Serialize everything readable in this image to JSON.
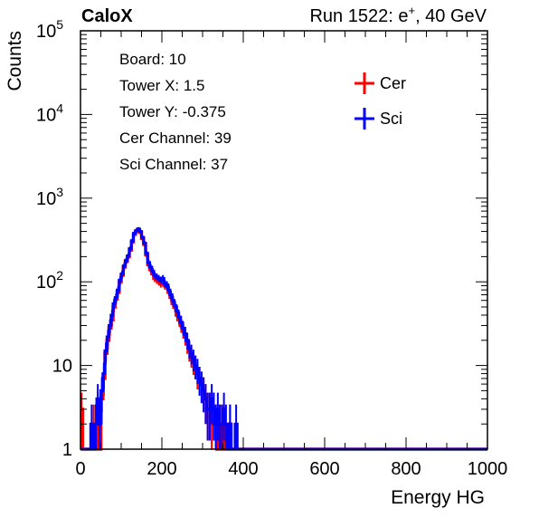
{
  "header": {
    "experiment": "CaloX",
    "run_label": "Run 1522: e",
    "run_sup": "+",
    "run_suffix": ", 40 GeV"
  },
  "info_box": {
    "lines": [
      "Board: 10",
      "Tower X: 1.5",
      "Tower Y: -0.375",
      "Cer Channel: 39",
      "Sci Channel: 37"
    ]
  },
  "chart_data": {
    "type": "line",
    "xlabel": "Energy HG",
    "ylabel": "Counts",
    "xlim": [
      0,
      1000
    ],
    "ylim": [
      1,
      100000
    ],
    "yscale": "log",
    "grid": false,
    "legend_placement": "top-right",
    "x_ticks": [
      "0",
      "200",
      "400",
      "600",
      "800",
      "1000"
    ],
    "y_ticks": [
      {
        "base": "1",
        "exp": ""
      },
      {
        "base": "10",
        "exp": ""
      },
      {
        "base": "10",
        "exp": "2"
      },
      {
        "base": "10",
        "exp": "3"
      },
      {
        "base": "10",
        "exp": "4"
      },
      {
        "base": "10",
        "exp": "5"
      }
    ],
    "series": [
      {
        "name": "Cer",
        "color": "#ff0000",
        "points": [
          [
            0,
            3
          ],
          [
            5,
            1
          ],
          [
            10,
            1
          ],
          [
            15,
            1
          ],
          [
            20,
            1
          ],
          [
            25,
            1
          ],
          [
            30,
            2
          ],
          [
            35,
            1
          ],
          [
            40,
            3
          ],
          [
            45,
            1
          ],
          [
            50,
            4
          ],
          [
            55,
            7
          ],
          [
            60,
            14
          ],
          [
            65,
            20
          ],
          [
            70,
            28
          ],
          [
            75,
            35
          ],
          [
            80,
            50
          ],
          [
            85,
            62
          ],
          [
            90,
            75
          ],
          [
            95,
            100
          ],
          [
            100,
            120
          ],
          [
            105,
            150
          ],
          [
            110,
            175
          ],
          [
            115,
            200
          ],
          [
            120,
            240
          ],
          [
            125,
            300
          ],
          [
            130,
            370
          ],
          [
            135,
            400
          ],
          [
            140,
            420
          ],
          [
            145,
            390
          ],
          [
            150,
            330
          ],
          [
            155,
            280
          ],
          [
            160,
            210
          ],
          [
            165,
            160
          ],
          [
            170,
            140
          ],
          [
            175,
            125
          ],
          [
            180,
            110
          ],
          [
            185,
            105
          ],
          [
            190,
            100
          ],
          [
            195,
            95
          ],
          [
            200,
            100
          ],
          [
            205,
            90
          ],
          [
            210,
            88
          ],
          [
            215,
            75
          ],
          [
            220,
            65
          ],
          [
            225,
            55
          ],
          [
            230,
            50
          ],
          [
            235,
            40
          ],
          [
            240,
            36
          ],
          [
            245,
            30
          ],
          [
            250,
            26
          ],
          [
            255,
            22
          ],
          [
            260,
            18
          ],
          [
            265,
            15
          ],
          [
            270,
            13
          ],
          [
            275,
            11
          ],
          [
            280,
            10
          ],
          [
            285,
            8
          ],
          [
            290,
            7
          ],
          [
            295,
            6
          ],
          [
            300,
            5
          ],
          [
            305,
            4
          ],
          [
            310,
            3
          ],
          [
            315,
            3
          ],
          [
            320,
            2
          ],
          [
            325,
            3
          ],
          [
            330,
            2
          ],
          [
            335,
            1
          ],
          [
            340,
            2
          ],
          [
            345,
            1
          ],
          [
            350,
            2
          ],
          [
            355,
            1
          ],
          [
            360,
            1
          ],
          [
            365,
            2
          ],
          [
            370,
            1
          ],
          [
            375,
            1
          ],
          [
            380,
            1
          ],
          [
            385,
            1
          ],
          [
            390,
            1
          ],
          [
            395,
            1
          ],
          [
            400,
            1
          ],
          [
            1000,
            1
          ]
        ]
      },
      {
        "name": "Sci",
        "color": "#0000ff",
        "points": [
          [
            0,
            1
          ],
          [
            5,
            1
          ],
          [
            10,
            1
          ],
          [
            15,
            1
          ],
          [
            20,
            1
          ],
          [
            25,
            2
          ],
          [
            30,
            1
          ],
          [
            35,
            2
          ],
          [
            40,
            4
          ],
          [
            45,
            2
          ],
          [
            50,
            5
          ],
          [
            55,
            8
          ],
          [
            60,
            15
          ],
          [
            65,
            22
          ],
          [
            70,
            30
          ],
          [
            75,
            40
          ],
          [
            80,
            55
          ],
          [
            85,
            65
          ],
          [
            90,
            80
          ],
          [
            95,
            105
          ],
          [
            100,
            125
          ],
          [
            105,
            155
          ],
          [
            110,
            180
          ],
          [
            115,
            205
          ],
          [
            120,
            250
          ],
          [
            125,
            310
          ],
          [
            130,
            380
          ],
          [
            135,
            410
          ],
          [
            140,
            430
          ],
          [
            145,
            400
          ],
          [
            150,
            340
          ],
          [
            155,
            290
          ],
          [
            160,
            220
          ],
          [
            165,
            170
          ],
          [
            170,
            150
          ],
          [
            175,
            135
          ],
          [
            180,
            120
          ],
          [
            185,
            115
          ],
          [
            190,
            110
          ],
          [
            195,
            105
          ],
          [
            200,
            110
          ],
          [
            205,
            95
          ],
          [
            210,
            92
          ],
          [
            215,
            80
          ],
          [
            220,
            70
          ],
          [
            225,
            60
          ],
          [
            230,
            52
          ],
          [
            235,
            45
          ],
          [
            240,
            38
          ],
          [
            245,
            33
          ],
          [
            250,
            28
          ],
          [
            255,
            24
          ],
          [
            260,
            20
          ],
          [
            265,
            16
          ],
          [
            270,
            14
          ],
          [
            275,
            12
          ],
          [
            280,
            10
          ],
          [
            285,
            9
          ],
          [
            290,
            7
          ],
          [
            295,
            6
          ],
          [
            300,
            5
          ],
          [
            305,
            4
          ],
          [
            310,
            3
          ],
          [
            315,
            3
          ],
          [
            320,
            4
          ],
          [
            325,
            3
          ],
          [
            330,
            2
          ],
          [
            335,
            3
          ],
          [
            340,
            2
          ],
          [
            345,
            2
          ],
          [
            350,
            3
          ],
          [
            355,
            2
          ],
          [
            360,
            1
          ],
          [
            365,
            2
          ],
          [
            370,
            1
          ],
          [
            375,
            1
          ],
          [
            380,
            2
          ],
          [
            385,
            1
          ],
          [
            390,
            1
          ],
          [
            395,
            1
          ],
          [
            400,
            1
          ],
          [
            1000,
            1
          ]
        ]
      }
    ]
  }
}
